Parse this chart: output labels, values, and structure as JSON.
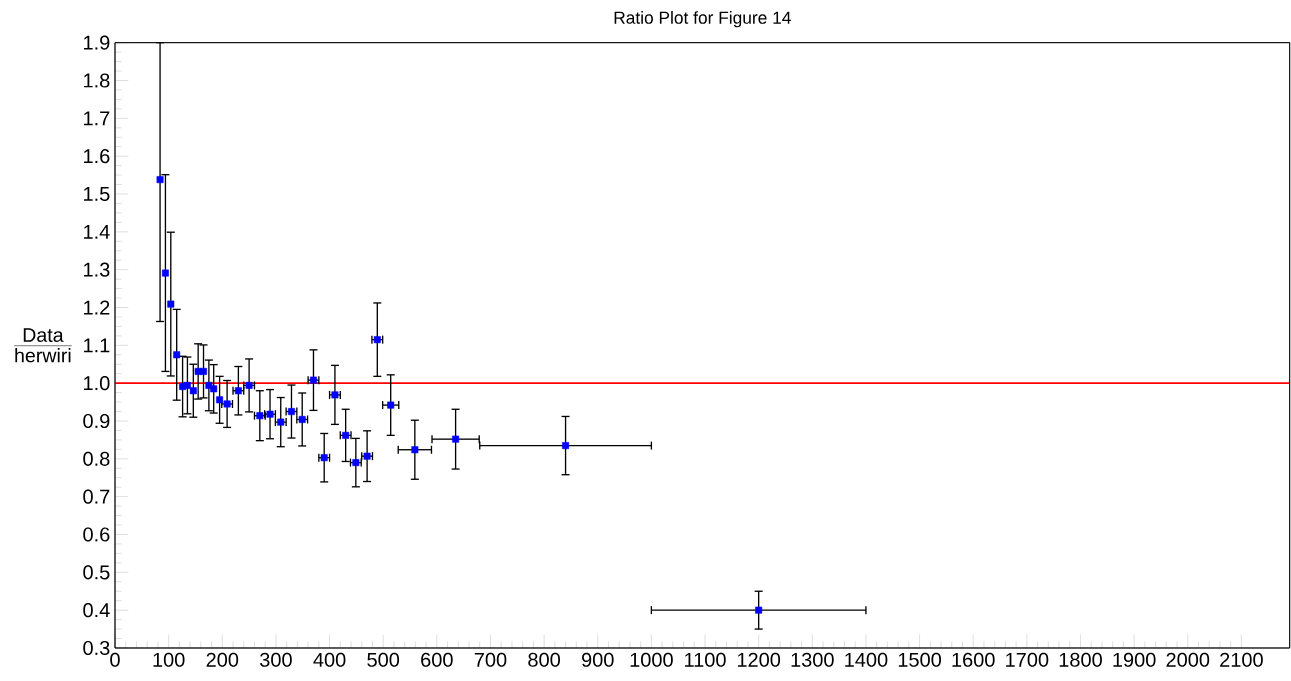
{
  "chart_data": {
    "type": "scatter",
    "title": "Ratio Plot for Figure 14",
    "ylabel": "\\frac{\\mathrm{Data}}{\\mathrm{herwiri}}",
    "x": [
      84,
      94,
      104,
      115,
      126,
      135,
      146,
      155,
      165,
      175,
      184,
      195,
      209,
      230,
      250,
      270,
      289,
      309,
      329,
      349,
      370,
      390,
      410,
      430,
      449,
      470,
      489,
      514,
      559,
      635,
      840,
      1200
    ],
    "series": [
      {
        "color": "#0000ff",
        "values": [
          1.538,
          1.291,
          1.209,
          1.075,
          0.991,
          0.994,
          0.98,
          1.031,
          1.031,
          0.994,
          0.985,
          0.956,
          0.945,
          0.98,
          0.994,
          0.914,
          0.918,
          0.897,
          0.925,
          0.904,
          1.008,
          0.803,
          0.969,
          0.862,
          0.79,
          0.807,
          1.115,
          0.942,
          0.824,
          0.852,
          0.835,
          0.4
        ],
        "errors": [
          [
            1.163,
            1.9
          ],
          0.26,
          0.19,
          0.12,
          0.08,
          0.075,
          0.07,
          0.073,
          0.07,
          0.067,
          0.064,
          0.062,
          0.062,
          0.064,
          0.07,
          0.066,
          0.065,
          0.065,
          0.07,
          0.07,
          0.08,
          0.064,
          0.078,
          0.069,
          0.064,
          0.067,
          0.097,
          0.08,
          0.078,
          0.079,
          0.077,
          0.05
        ],
        "xerrors": [
          null,
          null,
          null,
          null,
          null,
          null,
          null,
          null,
          null,
          null,
          null,
          null,
          10,
          10,
          10,
          10,
          10,
          10,
          10,
          10,
          10,
          10,
          10,
          10,
          10,
          10,
          10,
          15,
          31,
          44,
          160,
          200
        ]
      }
    ],
    "marker": "square",
    "xlim": [
      0,
      2190
    ],
    "ylim": [
      0.3,
      1.9
    ],
    "xticks": [
      0,
      100,
      200,
      300,
      400,
      500,
      600,
      700,
      800,
      900,
      1000,
      1100,
      1200,
      1300,
      1400,
      1500,
      1600,
      1700,
      1800,
      1900,
      2000,
      2100
    ],
    "yticks": [
      0.3,
      0.4,
      0.5,
      0.6,
      0.7,
      0.8,
      0.9,
      {
        "value": 1,
        "label": "1.0"
      },
      1.1,
      1.2,
      1.3,
      1.4,
      1.5,
      1.6,
      1.7,
      1.8,
      1.9
    ],
    "ref_lines": [
      {
        "axis": "y",
        "value": 1,
        "color": "#ff0000"
      }
    ]
  }
}
